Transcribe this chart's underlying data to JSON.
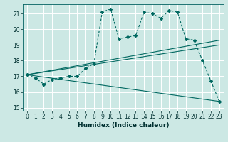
{
  "xlabel": "Humidex (Indice chaleur)",
  "bg_color": "#cce8e4",
  "line_color": "#006860",
  "xlim": [
    -0.5,
    23.5
  ],
  "ylim": [
    14.8,
    21.6
  ],
  "yticks": [
    15,
    16,
    17,
    18,
    19,
    20,
    21
  ],
  "xticks": [
    0,
    1,
    2,
    3,
    4,
    5,
    6,
    7,
    8,
    9,
    10,
    11,
    12,
    13,
    14,
    15,
    16,
    17,
    18,
    19,
    20,
    21,
    22,
    23
  ],
  "series1_x": [
    0,
    1,
    2,
    3,
    4,
    5,
    6,
    7,
    8,
    9,
    10,
    11,
    12,
    13,
    14,
    15,
    16,
    17,
    18,
    19,
    20,
    21,
    22,
    23
  ],
  "series1_y": [
    17.1,
    16.9,
    16.5,
    16.8,
    16.9,
    17.0,
    17.0,
    17.5,
    17.8,
    21.1,
    21.3,
    19.4,
    19.5,
    19.6,
    21.1,
    21.0,
    20.7,
    21.2,
    21.1,
    19.4,
    19.3,
    18.0,
    16.7,
    15.4
  ],
  "series2_x": [
    0,
    23
  ],
  "series2_y": [
    17.1,
    19.3
  ],
  "series3_x": [
    0,
    23
  ],
  "series3_y": [
    17.1,
    19.0
  ],
  "series4_x": [
    0,
    23
  ],
  "series4_y": [
    17.1,
    15.4
  ],
  "marker": "D",
  "marker_size": 2.0,
  "linewidth": 0.8,
  "tick_fontsize": 5.5,
  "xlabel_fontsize": 6.5
}
